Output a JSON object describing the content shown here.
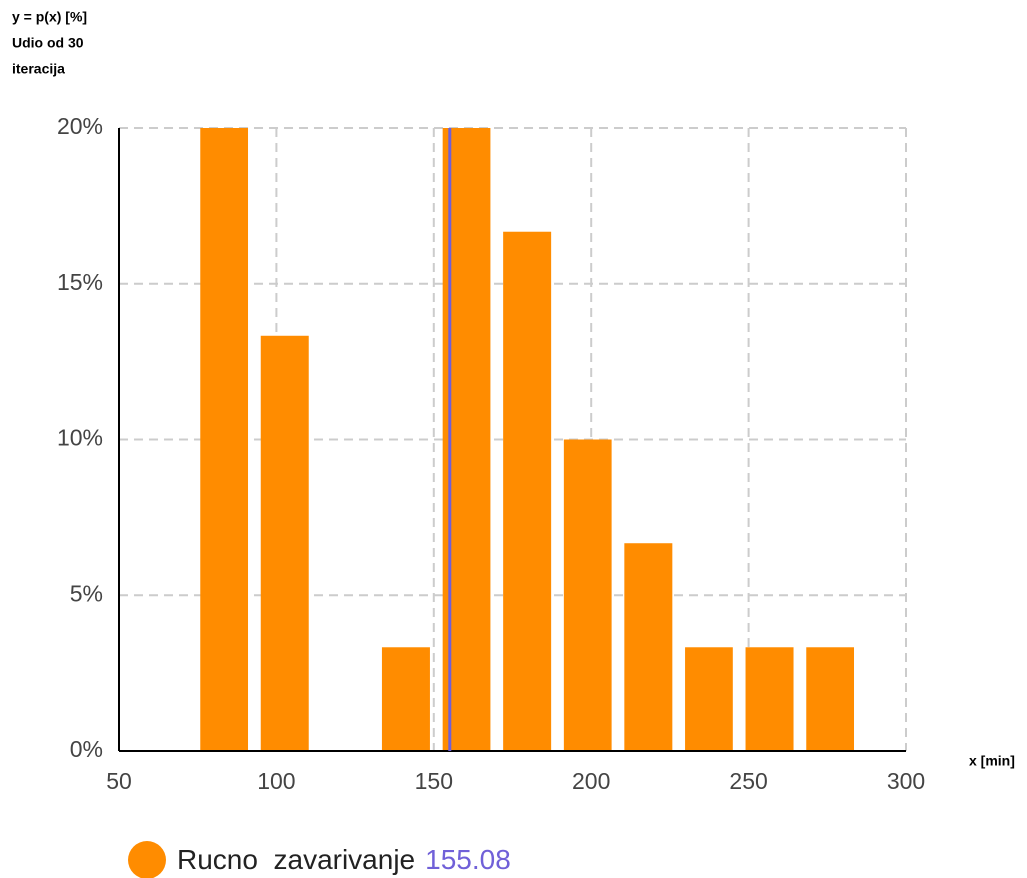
{
  "chart_data": {
    "type": "histogram",
    "y_label": [
      "y = p(x) [%]",
      "Udio od 30",
      "iteracija"
    ],
    "x_label": "x [min]",
    "bins": [
      73.8,
      93.0,
      112.3,
      131.5,
      150.8,
      170.0,
      189.3,
      208.5,
      227.8,
      247.0,
      266.3,
      285.5
    ],
    "series": [
      {
        "name": "Rucno  zavarivanje",
        "color": "#ff8c00",
        "values": [
          20,
          13.33,
          0,
          3.33,
          20,
          16.67,
          10,
          6.67,
          3.33,
          3.33,
          3.33
        ]
      }
    ],
    "mean": 155.08,
    "mean_color": "#7060d8",
    "xlim": [
      50,
      300
    ],
    "xticks": [
      50,
      100,
      150,
      200,
      250,
      300
    ],
    "ylim": [
      0,
      20
    ],
    "yticks": [
      {
        "value": 0,
        "label": "0%"
      },
      {
        "value": 5,
        "label": "5%"
      },
      {
        "value": 10,
        "label": "10%"
      },
      {
        "value": 15,
        "label": "15%"
      },
      {
        "value": 20,
        "label": "20%"
      }
    ],
    "grid": true
  }
}
